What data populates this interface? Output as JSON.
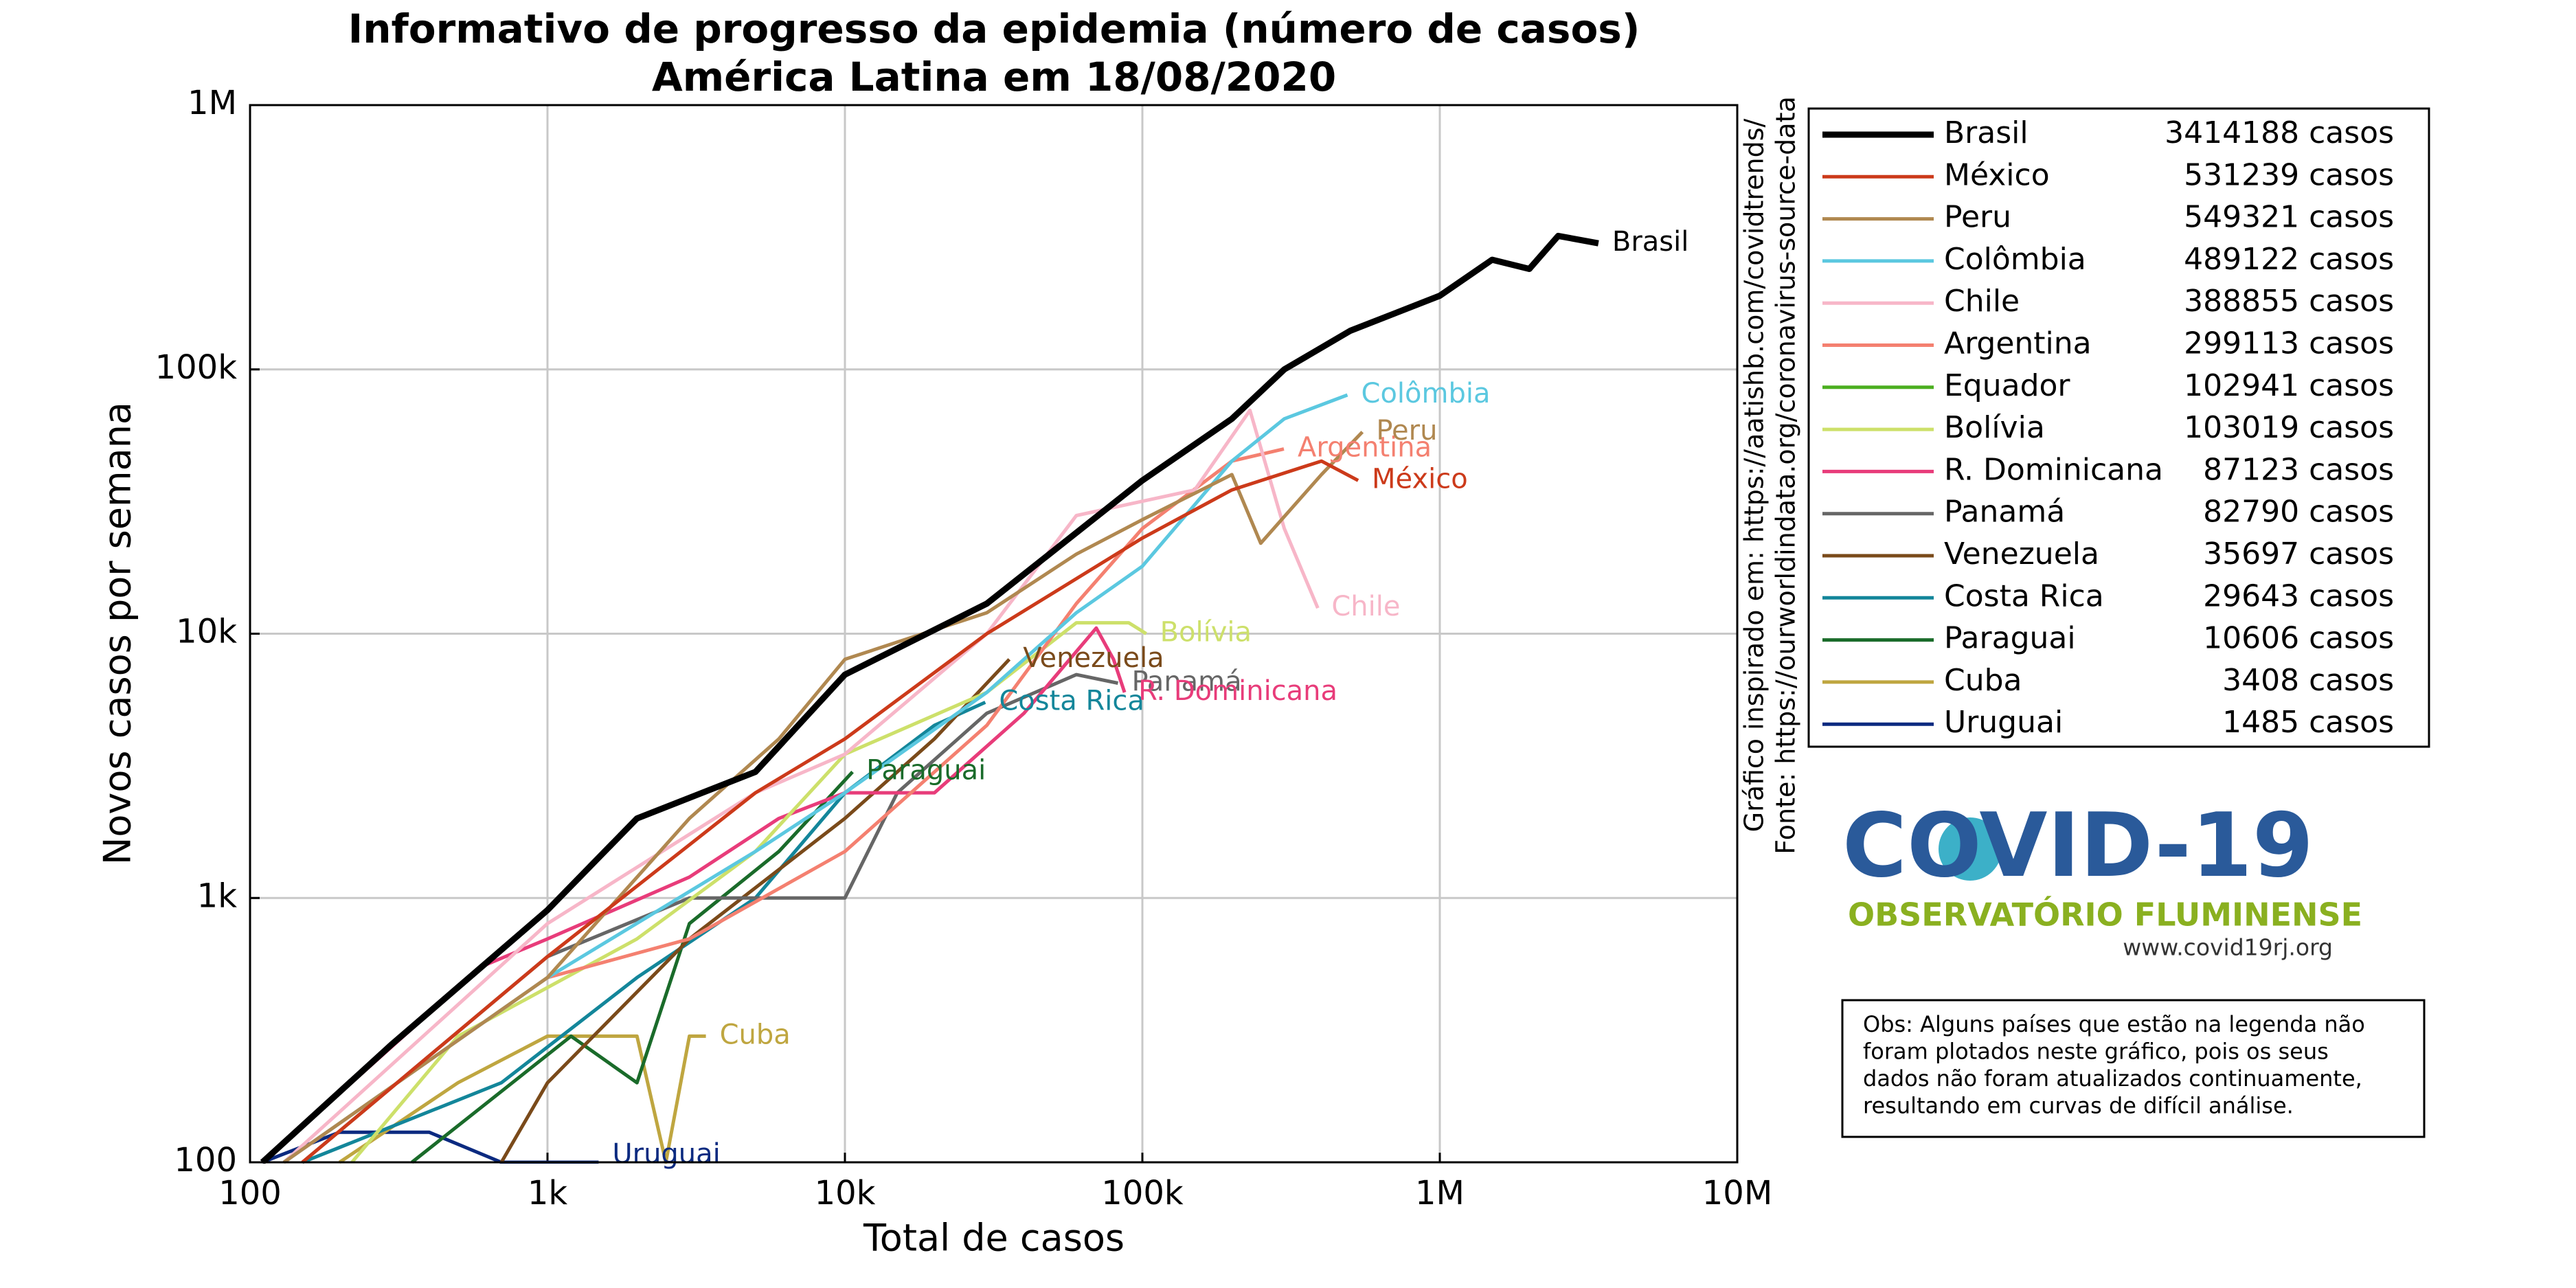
{
  "chart_data": {
    "type": "line",
    "title": "Informativo de progresso da epidemia (número de casos)",
    "subtitle": "América Latina em 18/08/2020",
    "x_label": "Total de casos",
    "y_label": "Novos casos por semana",
    "xscale": "log",
    "yscale": "log",
    "grid": true,
    "xlim": [
      100,
      10000000
    ],
    "ylim": [
      100,
      1000000
    ],
    "xticks": [
      100,
      {
        "value": 1000,
        "label": "1k"
      },
      {
        "value": 10000,
        "label": "10k"
      },
      {
        "value": 100000,
        "label": "100k"
      },
      {
        "value": 1000000,
        "label": "1M"
      },
      {
        "value": 10000000,
        "label": "10M"
      }
    ],
    "yticks": [
      100,
      {
        "value": 1000,
        "label": "1k"
      },
      {
        "value": 10000,
        "label": "10k"
      },
      {
        "value": 100000,
        "label": "100k"
      },
      {
        "value": 1000000,
        "label": "1M"
      }
    ],
    "side_notes": [
      "Gráfico inspirado em: https://aatishb.com/covidtrends/",
      "Fonte: https://ourworldindata.org/coronavirus-source-data"
    ],
    "logo": {
      "title": "COVID-19",
      "subtitle": "OBSERVATÓRIO FLUMINENSE",
      "url": "www.covid19rj.org"
    },
    "note": [
      "Obs: Alguns países que estão na legenda não",
      "foram plotados neste gráfico, pois os seus",
      "dados não foram atualizados continuamente,",
      "resultando em curvas de difícil análise."
    ],
    "series": [
      {
        "name": "Brasil",
        "legend_label": "3414188 casos",
        "color": "#000000",
        "x": [
          110,
          300,
          1000,
          2000,
          5000,
          10000,
          30000,
          100000,
          200000,
          300000,
          500000,
          1000000,
          1500000,
          2000000,
          2500000,
          3414188
        ],
        "values": [
          100,
          280,
          900,
          2000,
          3000,
          7000,
          13000,
          38000,
          65000,
          100000,
          140000,
          190000,
          260000,
          240000,
          320000,
          300000
        ]
      },
      {
        "name": "México",
        "legend_label": "531239 casos",
        "color": "#cc3a1a",
        "x": [
          150,
          1000,
          5000,
          10000,
          30000,
          100000,
          200000,
          400000,
          531239
        ],
        "values": [
          100,
          600,
          2500,
          4000,
          10000,
          23000,
          35000,
          45000,
          38000
        ]
      },
      {
        "name": "Peru",
        "legend_label": "549321 casos",
        "color": "#b08850",
        "x": [
          130,
          1000,
          3000,
          6000,
          10000,
          30000,
          60000,
          100000,
          200000,
          250000,
          400000,
          549321
        ],
        "values": [
          100,
          500,
          2000,
          4000,
          8000,
          12000,
          20000,
          27000,
          40000,
          22000,
          40000,
          58000
        ]
      },
      {
        "name": "Colômbia",
        "legend_label": "489122 casos",
        "color": "#5bc8e0",
        "x": [
          130,
          1000,
          5000,
          10000,
          30000,
          60000,
          100000,
          200000,
          300000,
          489122
        ],
        "values": [
          100,
          500,
          1500,
          2500,
          6000,
          12000,
          18000,
          45000,
          65000,
          80000
        ]
      },
      {
        "name": "Chile",
        "legend_label": "388855 casos",
        "color": "#f7b6c8",
        "x": [
          130,
          1000,
          5000,
          10000,
          30000,
          60000,
          150000,
          230000,
          300000,
          388855
        ],
        "values": [
          100,
          800,
          2500,
          3500,
          10000,
          28000,
          35000,
          70000,
          25000,
          12500
        ]
      },
      {
        "name": "Argentina",
        "legend_label": "299113 casos",
        "color": "#f48070",
        "x": [
          130,
          1000,
          3000,
          10000,
          30000,
          60000,
          100000,
          200000,
          299113
        ],
        "values": [
          100,
          500,
          700,
          1500,
          4500,
          13000,
          25000,
          45000,
          50000
        ]
      },
      {
        "name": "Equador",
        "legend_label": "102941 casos",
        "color": "#4caf20",
        "x": [],
        "values": []
      },
      {
        "name": "Bolívia",
        "legend_label": "103019 casos",
        "color": "#cde06a",
        "x": [
          220,
          500,
          2000,
          5000,
          10000,
          30000,
          60000,
          90000,
          103019
        ],
        "values": [
          100,
          300,
          700,
          1500,
          3500,
          6000,
          11000,
          11000,
          10000
        ]
      },
      {
        "name": "R. Dominicana",
        "legend_label": "87123 casos",
        "color": "#e83c7a",
        "x": [
          110,
          600,
          1000,
          3000,
          6000,
          10000,
          20000,
          40000,
          70000,
          80000,
          87123
        ],
        "values": [
          100,
          550,
          700,
          1200,
          2000,
          2500,
          2500,
          5000,
          10500,
          8000,
          6000
        ]
      },
      {
        "name": "Panamá",
        "legend_label": "82790 casos",
        "color": "#666666",
        "x": [
          150,
          1000,
          3000,
          6000,
          10000,
          15000,
          30000,
          60000,
          82790
        ],
        "values": [
          100,
          600,
          1000,
          1000,
          1000,
          2500,
          5000,
          7000,
          6500
        ]
      },
      {
        "name": "Venezuela",
        "legend_label": "35697 casos",
        "color": "#7a4a1a",
        "x": [
          700,
          1000,
          3000,
          10000,
          20000,
          35697
        ],
        "values": [
          100,
          200,
          700,
          2000,
          4000,
          8000
        ]
      },
      {
        "name": "Costa Rica",
        "legend_label": "29643 casos",
        "color": "#13869a",
        "x": [
          150,
          700,
          2000,
          5000,
          10000,
          20000,
          29643
        ],
        "values": [
          100,
          200,
          500,
          1000,
          2500,
          4500,
          5500
        ]
      },
      {
        "name": "Paraguai",
        "legend_label": "10606 casos",
        "color": "#1a6b2a",
        "x": [
          350,
          1200,
          2000,
          3000,
          6000,
          10606
        ],
        "values": [
          100,
          300,
          200,
          800,
          1500,
          3000
        ]
      },
      {
        "name": "Cuba",
        "legend_label": "3408 casos",
        "color": "#bfa640",
        "x": [
          200,
          500,
          1000,
          2000,
          2500,
          3000,
          3408
        ],
        "values": [
          100,
          200,
          300,
          300,
          100,
          300,
          300
        ]
      },
      {
        "name": "Uruguai",
        "legend_label": "1485 casos",
        "color": "#0b2a80",
        "x": [
          110,
          200,
          400,
          700,
          1485
        ],
        "values": [
          100,
          130,
          130,
          100,
          100
        ]
      }
    ]
  }
}
